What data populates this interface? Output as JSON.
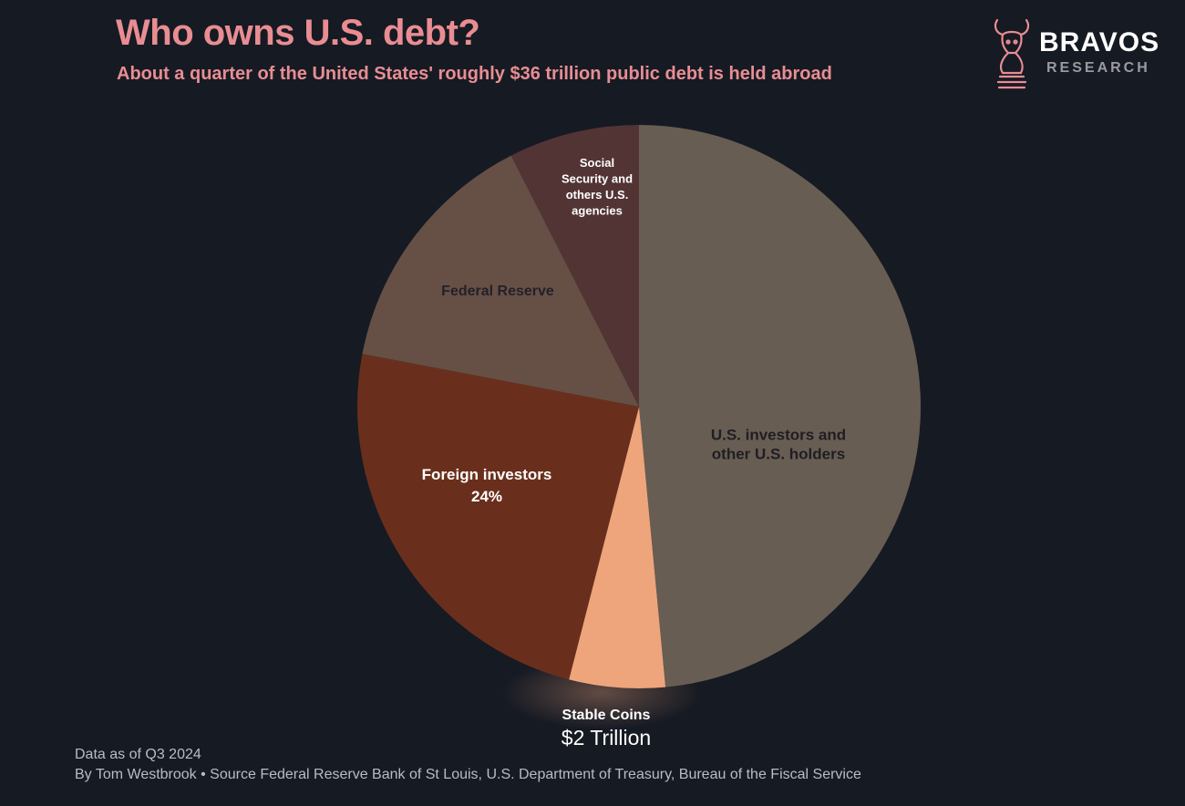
{
  "header": {
    "title": "Who owns U.S. debt?",
    "subtitle": "About a quarter of the United States' roughly $36 trillion public debt is held abroad"
  },
  "logo": {
    "name": "BRAVOS",
    "sub": "RESEARCH",
    "icon": "bull-knight-icon",
    "color": "#e98d93"
  },
  "chart_data": {
    "type": "pie",
    "title": "Who owns U.S. debt?",
    "total_trillion": 36,
    "start_angle_deg": 0,
    "direction": "clockwise",
    "slices": [
      {
        "id": "us-investors",
        "label_lines": [
          "U.S. investors and",
          "other U.S. holders"
        ],
        "value": 48.5,
        "color": "#675d52",
        "text_color": "#1f1e23"
      },
      {
        "id": "stable-coins",
        "label_lines": [],
        "value": 5.5,
        "color": "#eea57c",
        "text_color": "#ffffff"
      },
      {
        "id": "foreign-investors",
        "label_lines": [
          "Foreign investors",
          "24%"
        ],
        "value": 24,
        "color": "#6a2f1c",
        "text_color": "#ffffff"
      },
      {
        "id": "federal-reserve",
        "label_lines": [
          "Federal Reserve"
        ],
        "value": 14.5,
        "color": "#665045",
        "text_color": "#24202a"
      },
      {
        "id": "social-security",
        "label_lines": [
          "Social",
          "Security and",
          "others U.S.",
          "agencies"
        ],
        "value": 7.5,
        "color": "#533434",
        "text_color": "#ffffff"
      }
    ],
    "callout": {
      "slice": "stable-coins",
      "label": "Stable Coins",
      "value_text": "$2 Trillion"
    }
  },
  "footer": {
    "date": "Data as of Q3 2024",
    "source": "By Tom Westbrook • Source Federal Reserve Bank of St Louis, U.S. Department of Treasury, Bureau of the Fiscal Service"
  }
}
